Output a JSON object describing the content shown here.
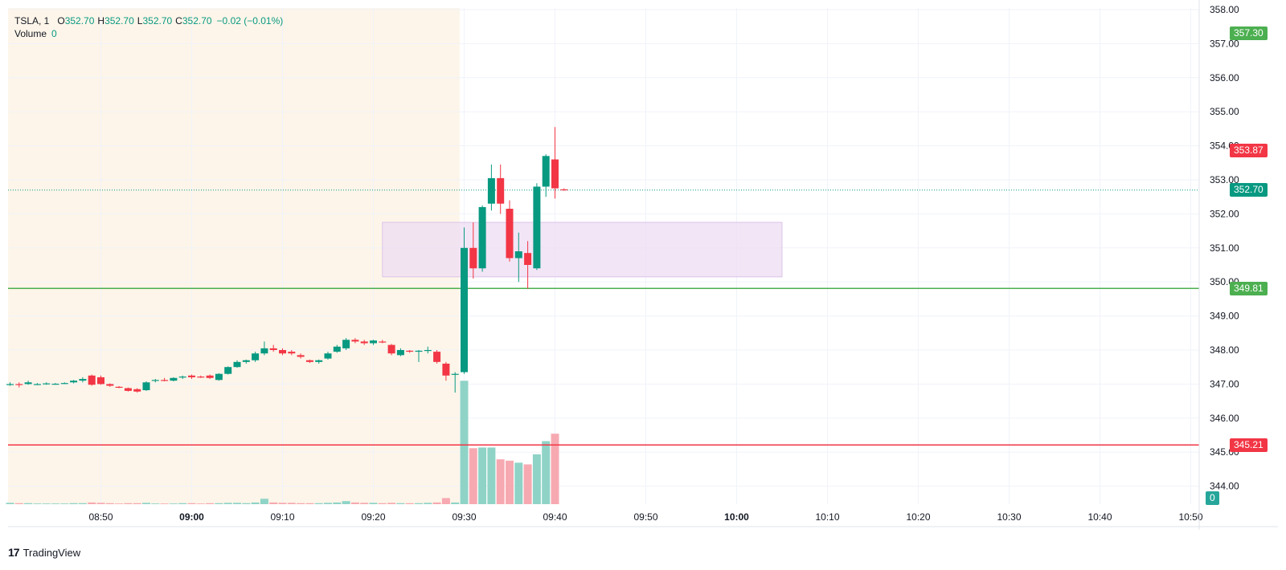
{
  "legend": {
    "symbol": "TSLA, 1",
    "open_label": "O",
    "open": "352.70",
    "high_label": "H",
    "high": "352.70",
    "low_label": "L",
    "low": "352.70",
    "close_label": "C",
    "close": "352.70",
    "change": "−0.02 (−0.01%)",
    "volume_label": "Volume",
    "volume": "0"
  },
  "price_tags": [
    {
      "id": "tag-357",
      "value": 357.3,
      "label": "357.30",
      "color": "#4caf50"
    },
    {
      "id": "tag-353",
      "value": 353.87,
      "label": "353.87",
      "color": "#f23645"
    },
    {
      "id": "tag-352",
      "value": 352.7,
      "label": "352.70",
      "color": "#089981"
    },
    {
      "id": "tag-349",
      "value": 349.81,
      "label": "349.81",
      "color": "#4caf50"
    },
    {
      "id": "tag-345",
      "value": 345.21,
      "label": "345.21",
      "color": "#f23645"
    },
    {
      "id": "tag-vol",
      "value": 0,
      "label": "0",
      "color": "#26a69a"
    }
  ],
  "branding": {
    "logo": "17",
    "name": "TradingView"
  },
  "colors": {
    "up": "#089981",
    "down": "#f23645",
    "vol_up": "#8fd3c7",
    "vol_down": "#f7a9b1",
    "premarket_bg": "#fdf5e9",
    "zone": "#eedcf3",
    "support_line": "#4caf50",
    "resistance_line": "#f23645"
  },
  "chart_data": {
    "type": "candlestick",
    "symbol": "TSLA",
    "interval": "1",
    "y_ticks": [
      358.0,
      357.0,
      356.0,
      355.0,
      354.0,
      353.0,
      352.0,
      351.0,
      350.0,
      349.0,
      348.0,
      347.0,
      346.0,
      345.0,
      344.0
    ],
    "ylim": [
      343.5,
      358.3
    ],
    "x_ticks": [
      {
        "label": "08:50",
        "bold": false
      },
      {
        "label": "09:00",
        "bold": true
      },
      {
        "label": "09:10",
        "bold": false
      },
      {
        "label": "09:20",
        "bold": false
      },
      {
        "label": "09:30",
        "bold": false
      },
      {
        "label": "09:40",
        "bold": false
      },
      {
        "label": "09:50",
        "bold": false
      },
      {
        "label": "10:00",
        "bold": true
      },
      {
        "label": "10:10",
        "bold": false
      },
      {
        "label": "10:20",
        "bold": false
      },
      {
        "label": "10:30",
        "bold": false
      },
      {
        "label": "10:40",
        "bold": false
      },
      {
        "label": "10:50",
        "bold": false
      }
    ],
    "xlim": [
      "08:40",
      "10:54"
    ],
    "session_open": "09:29.5",
    "horizontal_lines": [
      {
        "price": 349.81,
        "role": "support"
      },
      {
        "price": 345.21,
        "role": "resistance"
      }
    ],
    "last_price": 352.7,
    "zone": {
      "from_time": "09:21",
      "to_time": "10:05",
      "price_top": 351.75,
      "price_bottom": 350.15
    },
    "candles": [
      {
        "t": "08:40",
        "o": 347.0,
        "h": 347.05,
        "l": 346.95,
        "c": 347.0,
        "v": 0.4
      },
      {
        "t": "08:41",
        "o": 347.0,
        "h": 347.05,
        "l": 346.9,
        "c": 346.98,
        "v": 0.3
      },
      {
        "t": "08:42",
        "o": 347.0,
        "h": 347.1,
        "l": 346.98,
        "c": 347.05,
        "v": 0.3
      },
      {
        "t": "08:43",
        "o": 347.0,
        "h": 347.03,
        "l": 346.97,
        "c": 347.0,
        "v": 0.2
      },
      {
        "t": "08:44",
        "o": 347.0,
        "h": 347.05,
        "l": 346.98,
        "c": 347.02,
        "v": 0.2
      },
      {
        "t": "08:45",
        "o": 347.0,
        "h": 347.03,
        "l": 346.98,
        "c": 347.01,
        "v": 0.2
      },
      {
        "t": "08:46",
        "o": 347.02,
        "h": 347.05,
        "l": 347.0,
        "c": 347.03,
        "v": 0.2
      },
      {
        "t": "08:47",
        "o": 347.05,
        "h": 347.12,
        "l": 347.02,
        "c": 347.1,
        "v": 0.3
      },
      {
        "t": "08:48",
        "o": 347.1,
        "h": 347.2,
        "l": 347.05,
        "c": 347.15,
        "v": 0.3
      },
      {
        "t": "08:49",
        "o": 347.25,
        "h": 347.28,
        "l": 346.95,
        "c": 346.98,
        "v": 0.5
      },
      {
        "t": "08:50",
        "o": 347.2,
        "h": 347.25,
        "l": 346.98,
        "c": 347.0,
        "v": 0.4
      },
      {
        "t": "08:51",
        "o": 347.0,
        "h": 347.02,
        "l": 346.92,
        "c": 346.95,
        "v": 0.3
      },
      {
        "t": "08:52",
        "o": 346.92,
        "h": 346.94,
        "l": 346.88,
        "c": 346.9,
        "v": 0.2
      },
      {
        "t": "08:53",
        "o": 346.88,
        "h": 346.9,
        "l": 346.78,
        "c": 346.8,
        "v": 0.3
      },
      {
        "t": "08:54",
        "o": 346.85,
        "h": 346.88,
        "l": 346.75,
        "c": 346.78,
        "v": 0.3
      },
      {
        "t": "08:55",
        "o": 346.82,
        "h": 347.08,
        "l": 346.8,
        "c": 347.05,
        "v": 0.4
      },
      {
        "t": "08:56",
        "o": 347.1,
        "h": 347.15,
        "l": 347.05,
        "c": 347.12,
        "v": 0.2
      },
      {
        "t": "08:57",
        "o": 347.12,
        "h": 347.18,
        "l": 347.08,
        "c": 347.1,
        "v": 0.2
      },
      {
        "t": "08:58",
        "o": 347.1,
        "h": 347.2,
        "l": 347.08,
        "c": 347.18,
        "v": 0.2
      },
      {
        "t": "08:59",
        "o": 347.2,
        "h": 347.25,
        "l": 347.15,
        "c": 347.22,
        "v": 0.3
      },
      {
        "t": "09:00",
        "o": 347.25,
        "h": 347.28,
        "l": 347.15,
        "c": 347.2,
        "v": 0.3
      },
      {
        "t": "09:01",
        "o": 347.22,
        "h": 347.25,
        "l": 347.18,
        "c": 347.2,
        "v": 0.2
      },
      {
        "t": "09:02",
        "o": 347.25,
        "h": 347.28,
        "l": 347.15,
        "c": 347.18,
        "v": 0.3
      },
      {
        "t": "09:03",
        "o": 347.12,
        "h": 347.32,
        "l": 347.1,
        "c": 347.3,
        "v": 0.3
      },
      {
        "t": "09:04",
        "o": 347.3,
        "h": 347.52,
        "l": 347.28,
        "c": 347.5,
        "v": 0.4
      },
      {
        "t": "09:05",
        "o": 347.5,
        "h": 347.7,
        "l": 347.48,
        "c": 347.65,
        "v": 0.4
      },
      {
        "t": "09:06",
        "o": 347.65,
        "h": 347.72,
        "l": 347.6,
        "c": 347.7,
        "v": 0.3
      },
      {
        "t": "09:07",
        "o": 347.7,
        "h": 347.95,
        "l": 347.65,
        "c": 347.9,
        "v": 0.5
      },
      {
        "t": "09:08",
        "o": 347.9,
        "h": 348.25,
        "l": 347.85,
        "c": 348.05,
        "v": 1.6
      },
      {
        "t": "09:09",
        "o": 348.05,
        "h": 348.15,
        "l": 347.95,
        "c": 348.0,
        "v": 0.5
      },
      {
        "t": "09:10",
        "o": 348.0,
        "h": 348.05,
        "l": 347.85,
        "c": 347.9,
        "v": 0.4
      },
      {
        "t": "09:11",
        "o": 347.95,
        "h": 348.0,
        "l": 347.85,
        "c": 347.9,
        "v": 0.4
      },
      {
        "t": "09:12",
        "o": 347.85,
        "h": 347.9,
        "l": 347.75,
        "c": 347.8,
        "v": 0.3
      },
      {
        "t": "09:13",
        "o": 347.7,
        "h": 347.72,
        "l": 347.62,
        "c": 347.65,
        "v": 0.3
      },
      {
        "t": "09:14",
        "o": 347.65,
        "h": 347.72,
        "l": 347.6,
        "c": 347.7,
        "v": 0.3
      },
      {
        "t": "09:15",
        "o": 347.75,
        "h": 347.95,
        "l": 347.72,
        "c": 347.9,
        "v": 0.4
      },
      {
        "t": "09:16",
        "o": 347.95,
        "h": 348.15,
        "l": 347.92,
        "c": 348.1,
        "v": 0.5
      },
      {
        "t": "09:17",
        "o": 348.05,
        "h": 348.35,
        "l": 348.0,
        "c": 348.3,
        "v": 0.9
      },
      {
        "t": "09:18",
        "o": 348.3,
        "h": 348.35,
        "l": 348.2,
        "c": 348.25,
        "v": 0.5
      },
      {
        "t": "09:19",
        "o": 348.25,
        "h": 348.3,
        "l": 348.15,
        "c": 348.2,
        "v": 0.4
      },
      {
        "t": "09:20",
        "o": 348.2,
        "h": 348.3,
        "l": 348.15,
        "c": 348.28,
        "v": 0.4
      },
      {
        "t": "09:21",
        "o": 348.25,
        "h": 348.3,
        "l": 348.2,
        "c": 348.22,
        "v": 0.3
      },
      {
        "t": "09:22",
        "o": 348.15,
        "h": 348.18,
        "l": 347.85,
        "c": 347.9,
        "v": 0.4
      },
      {
        "t": "09:23",
        "o": 347.85,
        "h": 348.05,
        "l": 347.82,
        "c": 348.0,
        "v": 0.3
      },
      {
        "t": "09:24",
        "o": 347.98,
        "h": 348.0,
        "l": 347.92,
        "c": 347.95,
        "v": 0.3
      },
      {
        "t": "09:25",
        "o": 347.95,
        "h": 348.0,
        "l": 347.65,
        "c": 347.98,
        "v": 0.3
      },
      {
        "t": "09:26",
        "o": 347.98,
        "h": 348.1,
        "l": 347.9,
        "c": 348.0,
        "v": 0.4
      },
      {
        "t": "09:27",
        "o": 347.95,
        "h": 348.0,
        "l": 347.6,
        "c": 347.65,
        "v": 0.5
      },
      {
        "t": "09:28",
        "o": 347.6,
        "h": 347.65,
        "l": 347.1,
        "c": 347.25,
        "v": 1.8
      },
      {
        "t": "09:29",
        "o": 347.3,
        "h": 347.35,
        "l": 346.75,
        "c": 347.3,
        "v": 0.5
      },
      {
        "t": "09:30",
        "o": 347.35,
        "h": 351.6,
        "l": 347.3,
        "c": 351.0,
        "v": 36.6
      },
      {
        "t": "09:31",
        "o": 351.0,
        "h": 351.75,
        "l": 350.1,
        "c": 350.4,
        "v": 16.6
      },
      {
        "t": "09:32",
        "o": 350.4,
        "h": 352.25,
        "l": 350.3,
        "c": 352.2,
        "v": 16.8
      },
      {
        "t": "09:33",
        "o": 352.3,
        "h": 353.45,
        "l": 352.1,
        "c": 353.05,
        "v": 16.8
      },
      {
        "t": "09:34",
        "o": 353.05,
        "h": 353.45,
        "l": 352.0,
        "c": 352.3,
        "v": 13.3
      },
      {
        "t": "09:35",
        "o": 352.15,
        "h": 352.4,
        "l": 350.6,
        "c": 350.7,
        "v": 12.9
      },
      {
        "t": "09:36",
        "o": 350.7,
        "h": 351.45,
        "l": 350.0,
        "c": 350.9,
        "v": 12.3
      },
      {
        "t": "09:37",
        "o": 350.85,
        "h": 351.2,
        "l": 349.8,
        "c": 350.5,
        "v": 11.8
      },
      {
        "t": "09:38",
        "o": 350.4,
        "h": 352.9,
        "l": 350.35,
        "c": 352.8,
        "v": 14.8
      },
      {
        "t": "09:39",
        "o": 352.8,
        "h": 353.75,
        "l": 352.5,
        "c": 353.7,
        "v": 18.7
      },
      {
        "t": "09:40",
        "o": 353.6,
        "h": 354.55,
        "l": 352.45,
        "c": 352.75,
        "v": 20.9
      },
      {
        "t": "09:41",
        "o": 352.72,
        "h": 352.75,
        "l": 352.68,
        "c": 352.7,
        "v": 0
      }
    ]
  }
}
